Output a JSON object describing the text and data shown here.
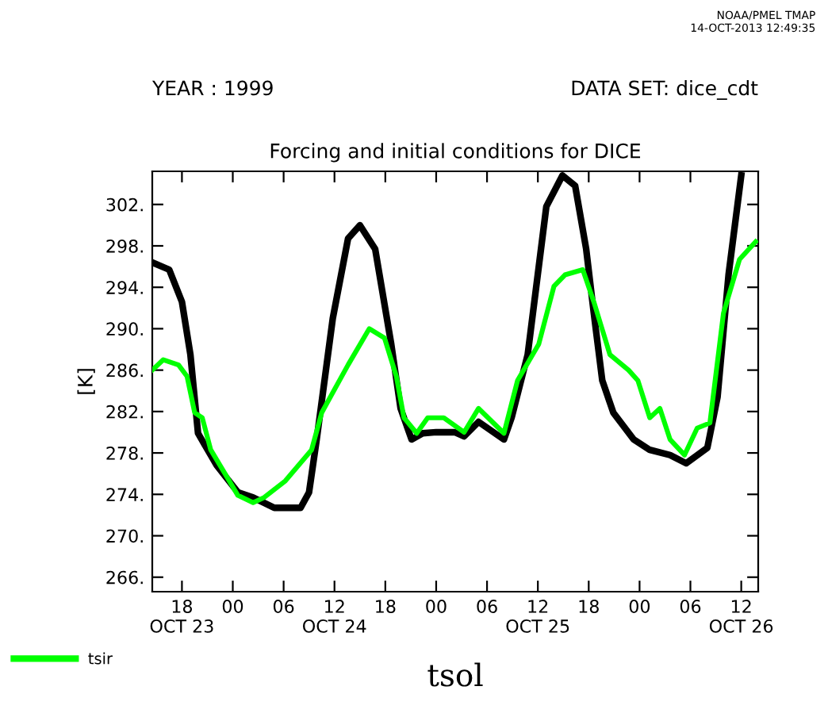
{
  "chart_data": {
    "type": "line",
    "title": "Forcing and initial conditions for DICE",
    "subtitle": "YEAR : 1999",
    "annotations": [
      "DATA SET: dice_cdt",
      "NOAA/PMEL TMAP",
      "14-OCT-2013 12:49:35"
    ],
    "xlabel": "tsol",
    "ylabel": "[K]",
    "xlim": [
      "1999-10-23T14:30",
      "1999-10-26T14:00"
    ],
    "ylim": [
      264.6,
      305.2
    ],
    "xticks": [
      {
        "value": "1999-10-23T18:00",
        "label": "18\nOCT 23"
      },
      {
        "value": "1999-10-24T00:00",
        "label": "00"
      },
      {
        "value": "1999-10-24T06:00",
        "label": "06"
      },
      {
        "value": "1999-10-24T12:00",
        "label": "12\nOCT 24"
      },
      {
        "value": "1999-10-24T18:00",
        "label": "18"
      },
      {
        "value": "1999-10-25T00:00",
        "label": "00"
      },
      {
        "value": "1999-10-25T06:00",
        "label": "06"
      },
      {
        "value": "1999-10-25T12:00",
        "label": "12\nOCT 25"
      },
      {
        "value": "1999-10-25T18:00",
        "label": "18"
      },
      {
        "value": "1999-10-26T00:00",
        "label": "00"
      },
      {
        "value": "1999-10-26T06:00",
        "label": "06"
      },
      {
        "value": "1999-10-26T12:00",
        "label": "12\nOCT 26"
      }
    ],
    "yticks": [
      {
        "value": 266,
        "label": "266."
      },
      {
        "value": 270,
        "label": "270."
      },
      {
        "value": 274,
        "label": "274."
      },
      {
        "value": 278,
        "label": "278."
      },
      {
        "value": 282,
        "label": "282."
      },
      {
        "value": 286,
        "label": "286."
      },
      {
        "value": 290,
        "label": "290."
      },
      {
        "value": 294,
        "label": "294."
      },
      {
        "value": 298,
        "label": "298."
      },
      {
        "value": 302,
        "label": "302."
      }
    ],
    "grid": false,
    "legend": "bottom left",
    "line_style": "solid",
    "series": [
      {
        "color": "#000000",
        "x": [
          "1999-10-23T14:30",
          "1999-10-23T16:30",
          "1999-10-23T18:00",
          "1999-10-23T19:00",
          "1999-10-23T19:54",
          "1999-10-23T22:06",
          "1999-10-24T00:36",
          "1999-10-24T02:24",
          "1999-10-24T04:54",
          "1999-10-24T08:00",
          "1999-10-24T09:00",
          "1999-10-24T09:54",
          "1999-10-24T11:48",
          "1999-10-24T13:36",
          "1999-10-24T15:00",
          "1999-10-24T16:48",
          "1999-10-24T18:42",
          "1999-10-24T19:48",
          "1999-10-24T21:06",
          "1999-10-24T22:24",
          "1999-10-25T00:00",
          "1999-10-25T02:12",
          "1999-10-25T03:18",
          "1999-10-25T05:00",
          "1999-10-25T08:00",
          "1999-10-25T08:54",
          "1999-10-25T10:48",
          "1999-10-25T13:00",
          "1999-10-25T14:54",
          "1999-10-25T16:24",
          "1999-10-25T17:42",
          "1999-10-25T18:36",
          "1999-10-25T19:36",
          "1999-10-25T20:54",
          "1999-10-25T23:18",
          "1999-10-26T01:12",
          "1999-10-26T03:36",
          "1999-10-26T05:30",
          "1999-10-26T08:00",
          "1999-10-26T09:12",
          "1999-10-26T10:30",
          "1999-10-26T12:00"
        ],
        "values": [
          296.4,
          295.7,
          292.6,
          287.5,
          279.9,
          276.8,
          274.2,
          273.7,
          272.7,
          272.7,
          274.2,
          279.3,
          291,
          298.7,
          300,
          297.7,
          288.5,
          282.3,
          279.3,
          279.9,
          280,
          280,
          279.6,
          281,
          279.3,
          281.4,
          287.5,
          301.8,
          304.8,
          303.8,
          297.7,
          291.5,
          285,
          281.9,
          279.3,
          278.3,
          277.8,
          277,
          278.5,
          283.4,
          295.2,
          304.8
        ]
      },
      {
        "name": "tsir",
        "color": "#00ff00",
        "x": [
          "1999-10-23T14:30",
          "1999-10-23T15:48",
          "1999-10-23T17:36",
          "1999-10-23T18:36",
          "1999-10-23T19:30",
          "1999-10-23T20:24",
          "1999-10-23T21:24",
          "1999-10-23T23:18",
          "1999-10-24T00:36",
          "1999-10-24T02:24",
          "1999-10-24T03:42",
          "1999-10-24T06:12",
          "1999-10-24T09:18",
          "1999-10-24T10:30",
          "1999-10-24T13:36",
          "1999-10-24T16:06",
          "1999-10-24T17:54",
          "1999-10-24T19:18",
          "1999-10-24T20:12",
          "1999-10-24T21:42",
          "1999-10-24T23:00",
          "1999-10-25T00:54",
          "1999-10-25T03:18",
          "1999-10-25T05:00",
          "1999-10-25T08:00",
          "1999-10-25T09:36",
          "1999-10-25T12:06",
          "1999-10-25T13:54",
          "1999-10-25T15:12",
          "1999-10-25T17:18",
          "1999-10-25T18:36",
          "1999-10-25T20:30",
          "1999-10-25T22:42",
          "1999-10-25T23:48",
          "1999-10-26T01:12",
          "1999-10-26T02:24",
          "1999-10-26T03:36",
          "1999-10-26T05:18",
          "1999-10-26T06:48",
          "1999-10-26T08:18",
          "1999-10-26T09:54",
          "1999-10-26T11:48",
          "1999-10-26T13:42"
        ],
        "values": [
          286,
          287,
          286.5,
          285.4,
          281.9,
          281.4,
          278.3,
          275.7,
          273.9,
          273.2,
          273.7,
          275.3,
          278.3,
          281.9,
          286.5,
          290,
          289.1,
          285.4,
          281.4,
          279.9,
          281.4,
          281.4,
          280,
          282.3,
          279.9,
          285,
          288.5,
          294.1,
          295.2,
          295.7,
          292.6,
          287.5,
          286,
          285,
          281.4,
          282.3,
          279.3,
          277.8,
          280.4,
          280.9,
          291.5,
          296.7,
          298.4
        ]
      }
    ]
  }
}
